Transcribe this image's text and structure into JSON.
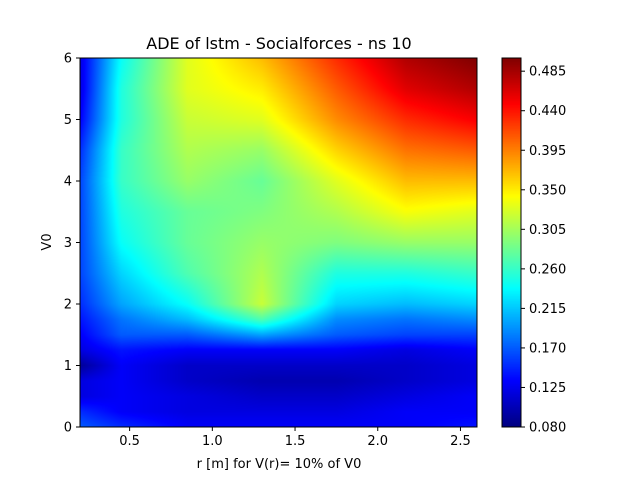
{
  "chart_data": {
    "type": "heatmap",
    "title": "ADE of lstm - Socialforces - ns 10",
    "xlabel": "r [m] for V(r)= 10% of V0",
    "ylabel": "V0",
    "xlim": [
      0.2,
      2.6
    ],
    "ylim": [
      0,
      6
    ],
    "xticks": [
      "0.5",
      "1.0",
      "1.5",
      "2.0",
      "2.5"
    ],
    "xtick_values": [
      0.5,
      1.0,
      1.5,
      2.0,
      2.5
    ],
    "yticks": [
      "0",
      "1",
      "2",
      "3",
      "4",
      "5",
      "6"
    ],
    "ytick_values": [
      0,
      1,
      2,
      3,
      4,
      5,
      6
    ],
    "colormap": "jet",
    "colorbar": {
      "ticks": [
        "0.080",
        "0.125",
        "0.170",
        "0.215",
        "0.260",
        "0.305",
        "0.350",
        "0.395",
        "0.440",
        "0.485"
      ],
      "tick_values": [
        0.08,
        0.125,
        0.17,
        0.215,
        0.26,
        0.305,
        0.35,
        0.395,
        0.44,
        0.485
      ],
      "min": 0.08,
      "max": 0.5
    },
    "x": [
      0.2,
      0.45,
      0.85,
      1.3,
      1.75,
      2.17,
      2.6
    ],
    "y": [
      0,
      0.25,
      0.5,
      0.75,
      1.0,
      1.25,
      1.5,
      1.75,
      2.0,
      2.5,
      3.0,
      3.5,
      4.0,
      4.5,
      5.0,
      5.5,
      6.0
    ],
    "z": [
      [
        0.17,
        0.15,
        0.13,
        0.13,
        0.13,
        0.13,
        0.14
      ],
      [
        0.15,
        0.13,
        0.12,
        0.12,
        0.12,
        0.13,
        0.13
      ],
      [
        0.12,
        0.13,
        0.12,
        0.11,
        0.11,
        0.12,
        0.13
      ],
      [
        0.12,
        0.13,
        0.11,
        0.1,
        0.1,
        0.11,
        0.12
      ],
      [
        0.09,
        0.13,
        0.11,
        0.11,
        0.11,
        0.11,
        0.12
      ],
      [
        0.12,
        0.14,
        0.13,
        0.13,
        0.13,
        0.12,
        0.13
      ],
      [
        0.13,
        0.17,
        0.17,
        0.2,
        0.17,
        0.16,
        0.16
      ],
      [
        0.14,
        0.18,
        0.21,
        0.27,
        0.19,
        0.18,
        0.19
      ],
      [
        0.15,
        0.2,
        0.24,
        0.32,
        0.22,
        0.21,
        0.22
      ],
      [
        0.16,
        0.22,
        0.27,
        0.31,
        0.25,
        0.25,
        0.26
      ],
      [
        0.16,
        0.24,
        0.28,
        0.3,
        0.29,
        0.3,
        0.3
      ],
      [
        0.16,
        0.25,
        0.28,
        0.29,
        0.31,
        0.34,
        0.33
      ],
      [
        0.16,
        0.26,
        0.3,
        0.28,
        0.33,
        0.37,
        0.37
      ],
      [
        0.15,
        0.26,
        0.31,
        0.3,
        0.36,
        0.4,
        0.41
      ],
      [
        0.13,
        0.25,
        0.32,
        0.33,
        0.39,
        0.43,
        0.45
      ],
      [
        0.12,
        0.25,
        0.33,
        0.35,
        0.41,
        0.46,
        0.48
      ],
      [
        0.12,
        0.24,
        0.33,
        0.37,
        0.43,
        0.48,
        0.5
      ]
    ]
  }
}
